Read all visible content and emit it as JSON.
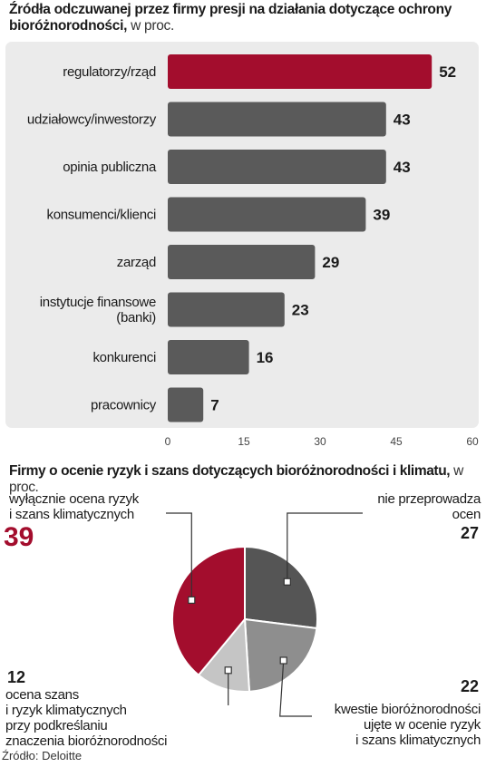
{
  "bar_chart": {
    "title": "Źródła odczuwanej przez firmy presji na działania dotyczące ochrony bioróżnorodności,",
    "unit": "w proc."
  },
  "pie_chart": {
    "title": "Firmy o ocenie ryzyk i szans dotyczących  bioróżnorodności i klimatu,",
    "unit": "w proc."
  },
  "source": "Źródło: Deloitte",
  "colors": {
    "highlight": "#a30d2d",
    "bar": "#5a5a5a",
    "panel": "#ebebeb",
    "pie_dark": "#555555",
    "pie_mid": "#8e8e8e",
    "pie_light": "#c5c5c5"
  },
  "chart_data": [
    {
      "type": "bar",
      "orientation": "horizontal",
      "categories": [
        [
          "regulatorzy/rząd"
        ],
        [
          "udziałowcy/inwestorzy"
        ],
        [
          "opinia publiczna"
        ],
        [
          "konsumenci/klienci"
        ],
        [
          "zarząd"
        ],
        [
          "instytucje finansowe",
          "(banki)"
        ],
        [
          "konkurenci"
        ],
        [
          "pracownicy"
        ]
      ],
      "values": [
        52,
        43,
        43,
        39,
        29,
        23,
        16,
        7
      ],
      "xlim": [
        0,
        60
      ],
      "xticks": [
        0,
        15,
        30,
        45,
        60
      ],
      "highlight_index": 0
    },
    {
      "type": "pie",
      "slices": [
        {
          "label": [
            "nie przeprowadza",
            "ocen"
          ],
          "value": 27
        },
        {
          "label": [
            "kwestie bioróżnorodności",
            "ujęte w ocenie ryzyk",
            "i szans klimatycznych"
          ],
          "value": 22
        },
        {
          "label": [
            "ocena szans",
            "i ryzyk klimatycznych",
            "przy podkreślaniu",
            "znaczenia bioróżnorodności"
          ],
          "value": 12
        },
        {
          "label": [
            "wyłącznie ocena ryzyk",
            "i szans klimatycznych"
          ],
          "value": 39
        }
      ]
    }
  ]
}
